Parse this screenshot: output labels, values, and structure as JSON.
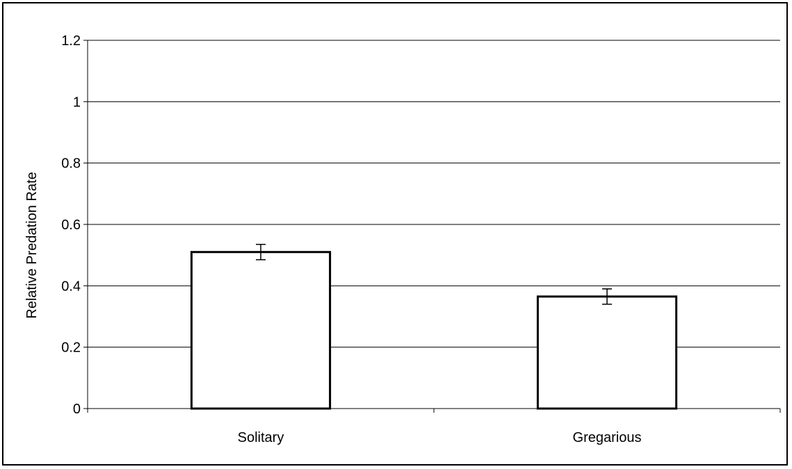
{
  "chart_data": {
    "type": "bar",
    "title": "",
    "xlabel": "",
    "ylabel": "Relative Predation Rate",
    "categories": [
      "Solitary",
      "Gregarious"
    ],
    "values": [
      0.51,
      0.365
    ],
    "error": [
      0.025,
      0.025
    ],
    "ylim": [
      0,
      1.2
    ],
    "yticks": [
      "0",
      "0.2",
      "0.4",
      "0.6",
      "0.8",
      "1",
      "1.2"
    ],
    "ytick_values": [
      0,
      0.2,
      0.4,
      0.6,
      0.8,
      1.0,
      1.2
    ],
    "grid": true,
    "legend": "none",
    "colors": {
      "bar_fill": "#ffffff",
      "bar_stroke": "#000000",
      "grid": "#000000",
      "axis": "#000000"
    }
  }
}
